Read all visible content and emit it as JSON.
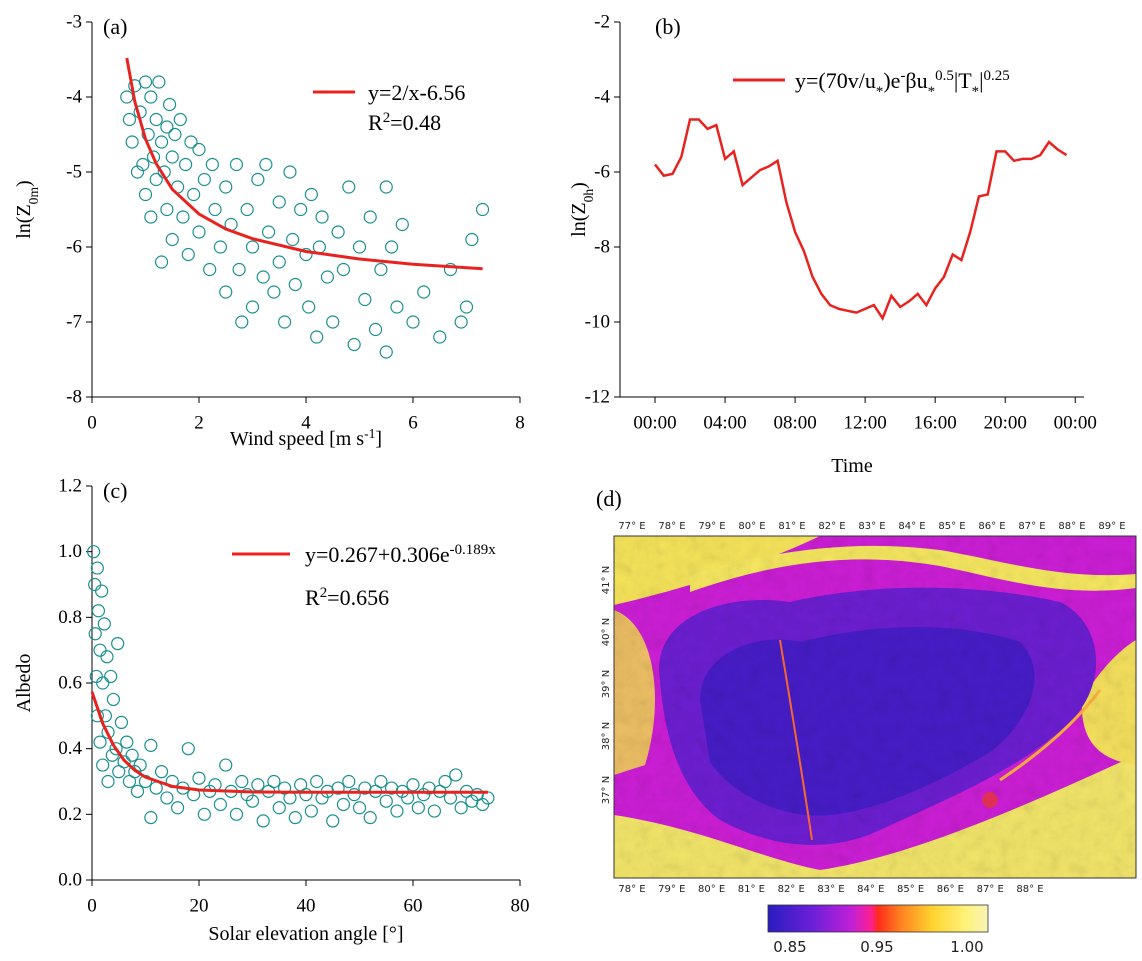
{
  "chart_data": [
    {
      "type": "scatter",
      "panel_label": "(a)",
      "x_label": [
        {
          "text": "Wind speed [m s"
        },
        {
          "text": "-1",
          "shift": "super"
        },
        {
          "text": "]"
        }
      ],
      "y_label": [
        {
          "text": "ln(Z"
        },
        {
          "text": "0m",
          "shift": "sub"
        },
        {
          "text": ")"
        }
      ],
      "xlim": [
        0,
        8
      ],
      "ylim": [
        -8,
        -3
      ],
      "xticks": [
        0,
        2,
        4,
        6,
        8
      ],
      "yticks": [
        -8,
        -7,
        -6,
        -5,
        -4,
        -3
      ],
      "points": {
        "color": "#1a9090",
        "x": [
          0.65,
          0.7,
          0.75,
          0.8,
          0.85,
          0.9,
          0.95,
          1.0,
          1.0,
          1.05,
          1.1,
          1.1,
          1.15,
          1.2,
          1.2,
          1.25,
          1.3,
          1.3,
          1.35,
          1.4,
          1.4,
          1.45,
          1.5,
          1.5,
          1.55,
          1.6,
          1.65,
          1.7,
          1.75,
          1.8,
          1.85,
          1.9,
          2.0,
          2.0,
          2.1,
          2.2,
          2.25,
          2.3,
          2.4,
          2.5,
          2.5,
          2.6,
          2.7,
          2.75,
          2.8,
          2.9,
          3.0,
          3.0,
          3.1,
          3.2,
          3.25,
          3.3,
          3.4,
          3.5,
          3.5,
          3.6,
          3.7,
          3.75,
          3.8,
          3.9,
          4.0,
          4.05,
          4.1,
          4.2,
          4.25,
          4.3,
          4.4,
          4.5,
          4.6,
          4.7,
          4.8,
          4.9,
          5.0,
          5.1,
          5.2,
          5.3,
          5.4,
          5.5,
          5.5,
          5.6,
          5.7,
          5.8,
          6.0,
          6.2,
          6.5,
          6.7,
          6.9,
          7.1,
          7.3,
          7.0
        ],
        "y": [
          -4.0,
          -4.3,
          -4.6,
          -3.85,
          -5.0,
          -4.2,
          -4.9,
          -3.8,
          -5.3,
          -4.5,
          -4.0,
          -5.6,
          -4.8,
          -4.3,
          -5.1,
          -3.8,
          -4.6,
          -6.2,
          -5.0,
          -4.4,
          -5.5,
          -4.1,
          -4.8,
          -5.9,
          -4.5,
          -5.2,
          -4.3,
          -5.6,
          -4.9,
          -6.1,
          -4.6,
          -5.3,
          -4.7,
          -5.8,
          -5.1,
          -6.3,
          -4.9,
          -5.5,
          -6.0,
          -5.2,
          -6.6,
          -5.7,
          -4.9,
          -6.3,
          -7.0,
          -5.5,
          -6.0,
          -6.8,
          -5.1,
          -6.4,
          -4.9,
          -5.8,
          -6.6,
          -5.4,
          -6.2,
          -7.0,
          -5.0,
          -5.9,
          -6.5,
          -5.5,
          -6.1,
          -6.8,
          -5.3,
          -7.2,
          -6.0,
          -5.6,
          -6.4,
          -7.0,
          -5.8,
          -6.3,
          -5.2,
          -7.3,
          -6.0,
          -6.7,
          -5.6,
          -7.1,
          -6.3,
          -5.2,
          -7.4,
          -6.0,
          -6.8,
          -5.7,
          -7.0,
          -6.6,
          -7.2,
          -6.3,
          -7.0,
          -5.9,
          -5.5,
          -6.8
        ]
      },
      "fit": {
        "name_parts": [
          {
            "text": "y=2/x-6.56"
          }
        ],
        "color": "#e8231f",
        "x": [
          0.65,
          0.8,
          1,
          1.2,
          1.5,
          2,
          2.5,
          3,
          4,
          5,
          6,
          7.3
        ],
        "y": [
          -3.48,
          -4.06,
          -4.56,
          -4.89,
          -5.23,
          -5.56,
          -5.76,
          -5.89,
          -6.06,
          -6.16,
          -6.23,
          -6.29
        ]
      },
      "r2_parts": [
        {
          "text": "R"
        },
        {
          "text": "2",
          "shift": "super"
        },
        {
          "text": "=0.48"
        }
      ]
    },
    {
      "type": "line",
      "panel_label": "(b)",
      "x_label": [
        {
          "text": "Time"
        }
      ],
      "y_label": [
        {
          "text": "ln(Z"
        },
        {
          "text": "0h",
          "shift": "sub"
        },
        {
          "text": ")"
        }
      ],
      "xlim": [
        -2,
        24.5
      ],
      "ylim": [
        -12,
        -2
      ],
      "xticks": [
        {
          "value": 0,
          "label": "00:00"
        },
        {
          "value": 4,
          "label": "04:00"
        },
        {
          "value": 8,
          "label": "08:00"
        },
        {
          "value": 12,
          "label": "12:00"
        },
        {
          "value": 16,
          "label": "16:00"
        },
        {
          "value": 20,
          "label": "20:00"
        },
        {
          "value": 24,
          "label": "00:00"
        }
      ],
      "yticks": [
        -12,
        -10,
        -8,
        -6,
        -4,
        -2
      ],
      "series": [
        {
          "name_parts": [
            {
              "text": "y=(70v/u"
            },
            {
              "text": "*",
              "shift": "sub"
            },
            {
              "text": ")e"
            },
            {
              "text": "-",
              "shift": "super"
            },
            {
              "text": "βu"
            },
            {
              "text": "*",
              "shift": "sub"
            },
            {
              "text": "0.5",
              "shift": "super"
            },
            {
              "text": "|T"
            },
            {
              "text": "*",
              "shift": "sub"
            },
            {
              "text": "|"
            },
            {
              "text": "0.25",
              "shift": "super"
            }
          ],
          "color": "#e8231f",
          "x": [
            0,
            0.5,
            1,
            1.5,
            2,
            2.5,
            3,
            3.5,
            4,
            4.5,
            5,
            5.5,
            6,
            6.5,
            7,
            7.5,
            8,
            8.5,
            9,
            9.5,
            10,
            10.5,
            11,
            11.5,
            12,
            12.5,
            13,
            13.5,
            14,
            14.5,
            15,
            15.5,
            16,
            16.5,
            17,
            17.5,
            18,
            18.5,
            19,
            19.5,
            20,
            20.5,
            21,
            21.5,
            22,
            22.5,
            23,
            23.5
          ],
          "y": [
            -5.8,
            -6.1,
            -6.05,
            -5.6,
            -4.6,
            -4.6,
            -4.85,
            -4.75,
            -5.65,
            -5.45,
            -6.35,
            -6.15,
            -5.95,
            -5.85,
            -5.7,
            -6.8,
            -7.6,
            -8.1,
            -8.8,
            -9.25,
            -9.55,
            -9.65,
            -9.7,
            -9.75,
            -9.65,
            -9.55,
            -9.9,
            -9.3,
            -9.6,
            -9.45,
            -9.25,
            -9.55,
            -9.1,
            -8.8,
            -8.2,
            -8.35,
            -7.6,
            -6.65,
            -6.6,
            -5.45,
            -5.45,
            -5.7,
            -5.65,
            -5.65,
            -5.55,
            -5.2,
            -5.4,
            -5.55
          ]
        }
      ]
    },
    {
      "type": "scatter",
      "panel_label": "(c)",
      "x_label": [
        {
          "text": "Solar elevation angle [°]"
        }
      ],
      "y_label": [
        {
          "text": "Albedo"
        }
      ],
      "xlim": [
        0,
        80
      ],
      "ylim": [
        0,
        1.2
      ],
      "xticks": [
        0,
        20,
        40,
        60,
        80
      ],
      "yticks": [
        {
          "value": 0,
          "label": "0.0"
        },
        0.2,
        0.4,
        0.6,
        0.8,
        {
          "value": 1,
          "label": "1.0"
        },
        1.2
      ],
      "points": {
        "color": "#1a9090",
        "x": [
          0.3,
          0.5,
          0.6,
          0.8,
          1.0,
          1.0,
          1.2,
          1.5,
          1.5,
          1.8,
          2.0,
          2.0,
          2.3,
          2.5,
          2.8,
          3.0,
          3.0,
          3.5,
          3.8,
          4.0,
          4.5,
          4.8,
          5.0,
          5.5,
          6.0,
          6.5,
          7.0,
          7.5,
          8.0,
          8.5,
          9,
          10,
          11,
          11,
          12,
          13,
          14,
          15,
          16,
          17,
          18,
          19,
          20,
          21,
          22,
          23,
          24,
          25,
          26,
          27,
          28,
          29,
          30,
          31,
          32,
          33,
          34,
          35,
          36,
          37,
          38,
          39,
          40,
          41,
          42,
          43,
          44,
          45,
          46,
          47,
          48,
          49,
          50,
          51,
          52,
          53,
          54,
          55,
          56,
          57,
          58,
          59,
          60,
          61,
          62,
          63,
          64,
          65,
          66,
          67,
          68,
          69,
          70,
          71,
          72,
          73,
          74
        ],
        "y": [
          1.0,
          0.9,
          0.75,
          0.62,
          0.95,
          0.5,
          0.82,
          0.7,
          0.42,
          0.88,
          0.6,
          0.35,
          0.78,
          0.5,
          0.68,
          0.45,
          0.3,
          0.62,
          0.38,
          0.55,
          0.4,
          0.72,
          0.33,
          0.48,
          0.36,
          0.42,
          0.3,
          0.38,
          0.33,
          0.27,
          0.35,
          0.3,
          0.41,
          0.19,
          0.28,
          0.33,
          0.25,
          0.3,
          0.22,
          0.28,
          0.4,
          0.26,
          0.31,
          0.2,
          0.27,
          0.29,
          0.23,
          0.35,
          0.27,
          0.2,
          0.3,
          0.26,
          0.24,
          0.29,
          0.18,
          0.27,
          0.3,
          0.22,
          0.28,
          0.25,
          0.19,
          0.29,
          0.26,
          0.21,
          0.3,
          0.25,
          0.27,
          0.18,
          0.28,
          0.23,
          0.3,
          0.26,
          0.22,
          0.28,
          0.19,
          0.27,
          0.3,
          0.24,
          0.28,
          0.21,
          0.27,
          0.25,
          0.29,
          0.22,
          0.26,
          0.28,
          0.21,
          0.27,
          0.3,
          0.25,
          0.32,
          0.22,
          0.27,
          0.24,
          0.26,
          0.23,
          0.25
        ]
      },
      "fit": {
        "name_parts": [
          {
            "text": "y=0.267+0.306e"
          },
          {
            "text": "-0.189x",
            "shift": "super"
          }
        ],
        "color": "#e8231f",
        "x": [
          0,
          2,
          4,
          6,
          8,
          10,
          15,
          20,
          30,
          40,
          60,
          74
        ],
        "y": [
          0.573,
          0.477,
          0.411,
          0.365,
          0.334,
          0.313,
          0.285,
          0.274,
          0.268,
          0.267,
          0.267,
          0.267
        ]
      },
      "r2_parts": [
        {
          "text": "R"
        },
        {
          "text": "2",
          "shift": "super"
        },
        {
          "text": "=0.656"
        }
      ]
    },
    {
      "type": "map",
      "panel_label": "(d)",
      "top_lon_labels": [
        "77° E",
        "78° E",
        "79° E",
        "80° E",
        "81° E",
        "82° E",
        "83° E",
        "84° E",
        "85° E",
        "86° E",
        "87° E",
        "88° E",
        "89° E"
      ],
      "bottom_lon_labels": [
        "78° E",
        "79° E",
        "80° E",
        "81° E",
        "82° E",
        "83° E",
        "84° E",
        "85° E",
        "86° E",
        "87° E",
        "88° E"
      ],
      "lat_labels": [
        "41° N",
        "40° N",
        "39° N",
        "38° N",
        "37° N"
      ],
      "colorbar_ticks": [
        0.85,
        0.95,
        {
          "value": 1,
          "label": "1.00"
        }
      ]
    }
  ]
}
